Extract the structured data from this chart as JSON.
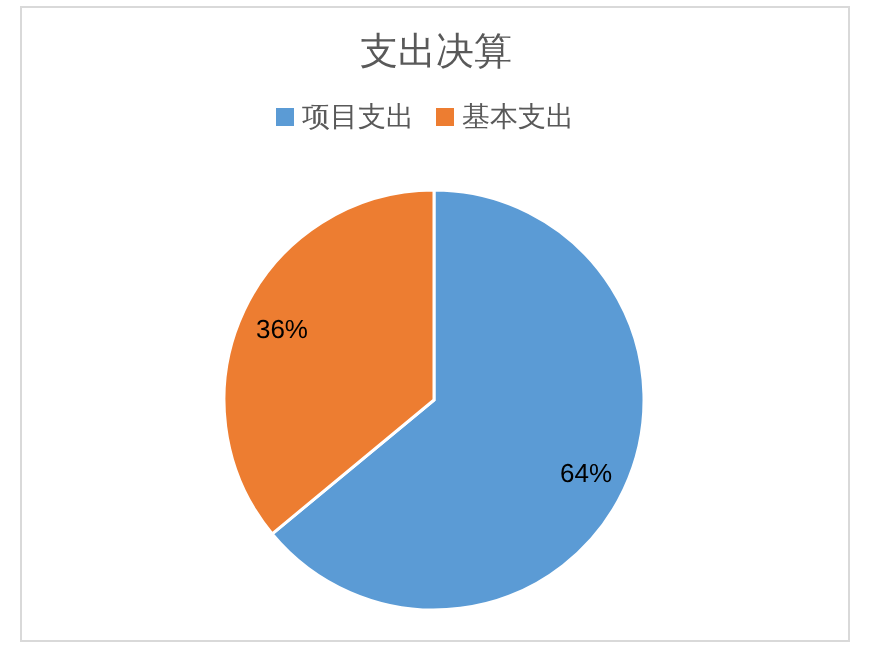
{
  "chart_data": {
    "type": "pie",
    "title": "支出决算",
    "categories": [
      "项目支出",
      "基本支出"
    ],
    "values": [
      64,
      36
    ],
    "colors": [
      "#5b9bd5",
      "#ed7d31"
    ],
    "value_labels": [
      "64%",
      "36%"
    ],
    "legend": "top"
  }
}
